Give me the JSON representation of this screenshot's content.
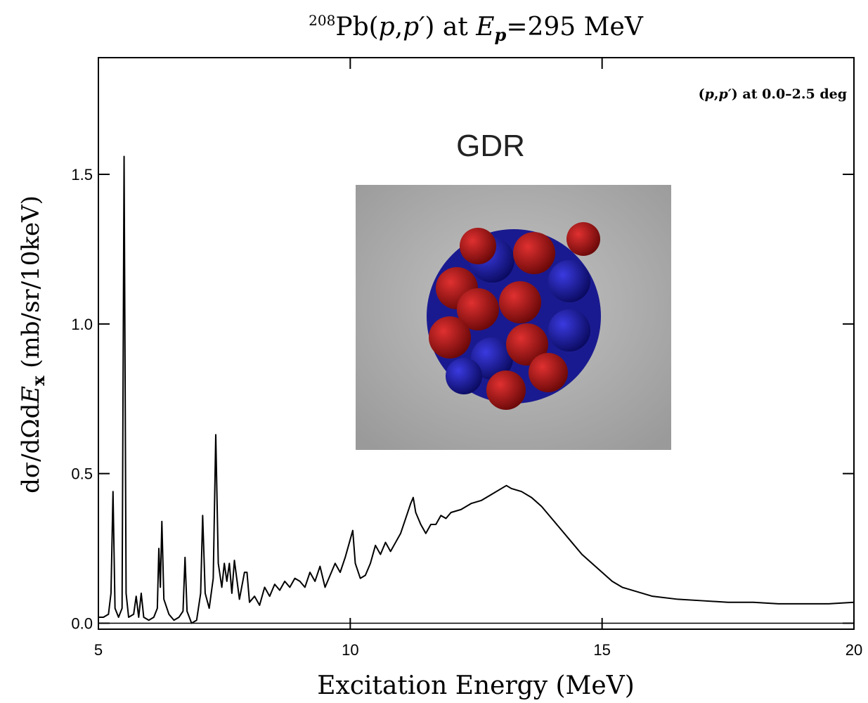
{
  "chart_data": {
    "type": "line",
    "title": [
      "208",
      "Pb(",
      "p",
      ",",
      "p′",
      ") at ",
      "E",
      "p",
      "=295 MeV"
    ],
    "x_label": "Excitation Energy (MeV)",
    "y_label": [
      "dσ/dΩd",
      "E",
      "x",
      " (mb/sr/10keV)"
    ],
    "annotations": {
      "condition": [
        "(",
        "p",
        ",",
        "p′",
        ") at 0.0–2.5 deg"
      ],
      "inset_label": "GDR"
    },
    "color": "#000000",
    "xlim": [
      5,
      20
    ],
    "xticks": [
      5,
      10,
      15,
      20
    ],
    "ylim": [
      -0.02,
      1.89
    ],
    "yticks": [
      {
        "value": 0,
        "label": "0.0"
      },
      0.5,
      {
        "value": 1,
        "label": "1.0"
      },
      1.5
    ],
    "x": [
      5.0,
      5.1,
      5.2,
      5.25,
      5.29,
      5.33,
      5.4,
      5.47,
      5.51,
      5.55,
      5.6,
      5.7,
      5.75,
      5.8,
      5.85,
      5.9,
      6.0,
      6.1,
      6.17,
      6.2,
      6.23,
      6.26,
      6.3,
      6.4,
      6.5,
      6.6,
      6.68,
      6.72,
      6.76,
      6.85,
      6.95,
      7.03,
      7.07,
      7.12,
      7.2,
      7.28,
      7.33,
      7.38,
      7.45,
      7.5,
      7.55,
      7.6,
      7.65,
      7.7,
      7.8,
      7.9,
      7.95,
      8.0,
      8.1,
      8.2,
      8.3,
      8.4,
      8.5,
      8.6,
      8.7,
      8.8,
      8.9,
      9.0,
      9.1,
      9.2,
      9.3,
      9.4,
      9.5,
      9.6,
      9.7,
      9.8,
      9.9,
      10.0,
      10.05,
      10.1,
      10.2,
      10.3,
      10.4,
      10.5,
      10.6,
      10.7,
      10.8,
      10.9,
      11.0,
      11.1,
      11.2,
      11.25,
      11.3,
      11.4,
      11.5,
      11.6,
      11.7,
      11.8,
      11.9,
      12.0,
      12.2,
      12.4,
      12.6,
      12.8,
      13.0,
      13.1,
      13.2,
      13.4,
      13.6,
      13.8,
      14.0,
      14.2,
      14.4,
      14.6,
      14.8,
      15.0,
      15.2,
      15.4,
      15.6,
      15.8,
      16.0,
      16.5,
      17.0,
      17.5,
      18.0,
      18.5,
      19.0,
      19.5,
      20.0
    ],
    "values": [
      0.02,
      0.02,
      0.03,
      0.1,
      0.44,
      0.05,
      0.02,
      0.05,
      1.56,
      0.1,
      0.02,
      0.03,
      0.09,
      0.02,
      0.1,
      0.02,
      0.01,
      0.02,
      0.05,
      0.25,
      0.12,
      0.34,
      0.08,
      0.03,
      0.01,
      0.02,
      0.04,
      0.22,
      0.04,
      0.0,
      0.01,
      0.1,
      0.36,
      0.1,
      0.05,
      0.15,
      0.63,
      0.2,
      0.12,
      0.2,
      0.14,
      0.2,
      0.1,
      0.21,
      0.08,
      0.17,
      0.17,
      0.07,
      0.09,
      0.06,
      0.12,
      0.09,
      0.13,
      0.11,
      0.14,
      0.12,
      0.15,
      0.14,
      0.12,
      0.17,
      0.14,
      0.19,
      0.12,
      0.16,
      0.2,
      0.17,
      0.22,
      0.28,
      0.31,
      0.2,
      0.15,
      0.16,
      0.2,
      0.26,
      0.23,
      0.27,
      0.24,
      0.27,
      0.3,
      0.35,
      0.4,
      0.42,
      0.37,
      0.33,
      0.3,
      0.33,
      0.33,
      0.36,
      0.35,
      0.37,
      0.38,
      0.4,
      0.41,
      0.43,
      0.45,
      0.46,
      0.45,
      0.44,
      0.42,
      0.39,
      0.35,
      0.31,
      0.27,
      0.23,
      0.2,
      0.17,
      0.14,
      0.12,
      0.11,
      0.1,
      0.09,
      0.08,
      0.075,
      0.07,
      0.07,
      0.065,
      0.065,
      0.065,
      0.07
    ]
  }
}
